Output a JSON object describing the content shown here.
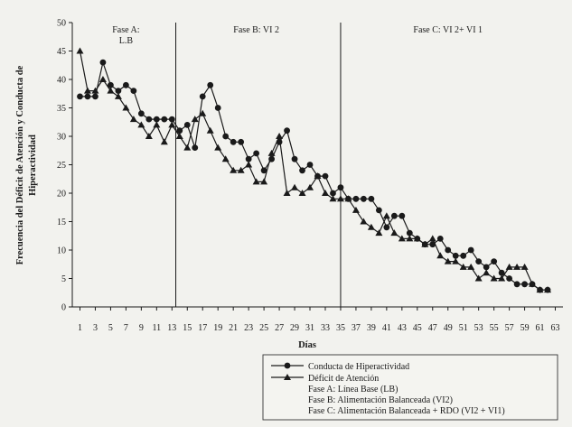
{
  "chart_data": {
    "type": "line",
    "xlabel": "Días",
    "ylabel_lines": [
      "Frecuencia del Déficit de Atención y Conducta de",
      "Hiperactividad"
    ],
    "ylim": [
      0,
      50
    ],
    "yticks": [
      0,
      5,
      10,
      15,
      20,
      25,
      30,
      35,
      40,
      45,
      50
    ],
    "xlim": [
      0,
      64
    ],
    "xticks": [
      1,
      3,
      5,
      7,
      9,
      11,
      13,
      15,
      17,
      19,
      21,
      23,
      25,
      27,
      29,
      31,
      33,
      35,
      37,
      39,
      41,
      43,
      45,
      47,
      49,
      51,
      53,
      55,
      57,
      59,
      61,
      63
    ],
    "phase_dividers": [
      13.5,
      35
    ],
    "phases": [
      {
        "label_lines": [
          "Fase A:",
          "L.B"
        ],
        "x_center": 7
      },
      {
        "label_lines": [
          "Fase B: VI 2"
        ],
        "x_center": 24
      },
      {
        "label_lines": [
          "Fase C: VI 2+ VI 1"
        ],
        "x_center": 49
      }
    ],
    "series": [
      {
        "name": "Conducta de Hiperactividad",
        "marker": "circle",
        "x": [
          1,
          2,
          3,
          4,
          5,
          6,
          7,
          8,
          9,
          10,
          11,
          12,
          13,
          14,
          15,
          16,
          17,
          18,
          19,
          20,
          21,
          22,
          23,
          24,
          25,
          26,
          27,
          28,
          29,
          30,
          31,
          32,
          33,
          34,
          35,
          36,
          37,
          38,
          39,
          40,
          41,
          42,
          43,
          44,
          45,
          46,
          47,
          48,
          49,
          50,
          51,
          52,
          53,
          54,
          55,
          56,
          57,
          58,
          59,
          60,
          61,
          62
        ],
        "values": [
          37,
          37,
          37,
          43,
          39,
          38,
          39,
          38,
          34,
          33,
          33,
          33,
          33,
          31,
          32,
          28,
          37,
          39,
          35,
          30,
          29,
          29,
          26,
          27,
          24,
          26,
          29,
          31,
          26,
          24,
          25,
          23,
          23,
          20,
          21,
          19,
          19,
          19,
          19,
          17,
          14,
          16,
          16,
          13,
          12,
          11,
          11,
          12,
          10,
          9,
          9,
          10,
          8,
          7,
          8,
          6,
          5,
          4,
          4,
          4,
          3,
          3
        ]
      },
      {
        "name": "Déficit de Atención",
        "marker": "triangle",
        "x": [
          1,
          2,
          3,
          4,
          5,
          6,
          7,
          8,
          9,
          10,
          11,
          12,
          13,
          14,
          15,
          16,
          17,
          18,
          19,
          20,
          21,
          22,
          23,
          24,
          25,
          26,
          27,
          28,
          29,
          30,
          31,
          32,
          33,
          34,
          35,
          36,
          37,
          38,
          39,
          40,
          41,
          42,
          43,
          44,
          45,
          46,
          47,
          48,
          49,
          50,
          51,
          52,
          53,
          54,
          55,
          56,
          57,
          58,
          59,
          60,
          61,
          62
        ],
        "values": [
          45,
          38,
          38,
          40,
          38,
          37,
          35,
          33,
          32,
          30,
          32,
          29,
          32,
          30,
          28,
          33,
          34,
          31,
          28,
          26,
          24,
          24,
          25,
          22,
          22,
          27,
          30,
          20,
          21,
          20,
          21,
          23,
          20,
          19,
          19,
          19,
          17,
          15,
          14,
          13,
          16,
          13,
          12,
          12,
          12,
          11,
          12,
          9,
          8,
          8,
          7,
          7,
          5,
          6,
          5,
          5,
          7,
          7,
          7,
          4,
          3,
          3
        ]
      }
    ]
  },
  "legend": {
    "series_labels": [
      "Conducta de Hiperactividad",
      "Déficit de Atención"
    ],
    "phase_notes": [
      "Fase A: Línea Base (LB)",
      "Fase B: Alimentación Balanceada (VI2)",
      "Fase C: Alimentación Balanceada + RDO (VI2 + VI1)"
    ]
  }
}
